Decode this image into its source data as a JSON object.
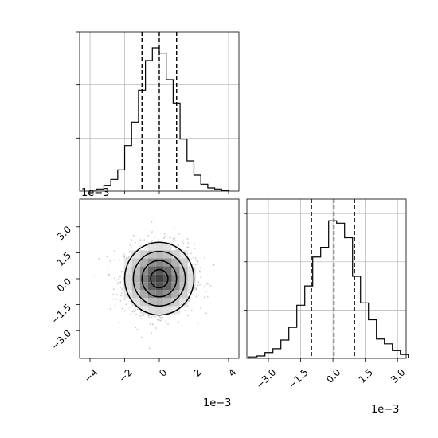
{
  "chart_data": {
    "type": "corner",
    "colors": {
      "line": "#000000",
      "grid": "#b0b0b0",
      "scatter": "#bdbdbd"
    },
    "top_histogram": {
      "type": "histogram",
      "variable": "x",
      "xlim": [
        -4.6,
        4.6
      ],
      "bin_edges": [
        -4.0,
        -3.6,
        -3.2,
        -2.8,
        -2.4,
        -2.0,
        -1.6,
        -1.2,
        -0.8,
        -0.4,
        0.0,
        0.4,
        0.8,
        1.2,
        1.6,
        2.0,
        2.4,
        2.8,
        3.2,
        3.6,
        4.0
      ],
      "counts": [
        2,
        4,
        11,
        22,
        40,
        86,
        130,
        190,
        246,
        270,
        260,
        210,
        166,
        98,
        57,
        30,
        13,
        6,
        4,
        1
      ],
      "ymax": 300,
      "quantiles": [
        -1.0,
        0.0,
        1.0
      ],
      "x_offset_text": "1e−3"
    },
    "scatter_panel": {
      "type": "scatter",
      "xlim": [
        -4.6,
        4.6
      ],
      "ylim": [
        -4.6,
        4.6
      ],
      "x_ticks": [
        -4,
        -2,
        0,
        2,
        4
      ],
      "x_tick_labels": [
        "−4",
        "−2",
        "0",
        "2",
        "4"
      ],
      "y_ticks": [
        -3.0,
        -1.5,
        0.0,
        1.5,
        3.0
      ],
      "y_tick_labels": [
        "−3.0",
        "−1.5",
        "0.0",
        "1.5",
        "3.0"
      ],
      "x_offset_text": "1e−3",
      "y_offset_text": "1e−3",
      "center": [
        0.0,
        0.0
      ],
      "sigma": [
        1.0,
        1.0
      ],
      "contour_levels_sigma": [
        0.5,
        1.0,
        1.5,
        2.0
      ]
    },
    "right_histogram": {
      "type": "histogram",
      "variable": "y",
      "xlim": [
        -4.0,
        3.4
      ],
      "bin_edges": [
        -3.9,
        -3.53,
        -3.16,
        -2.79,
        -2.42,
        -2.05,
        -1.68,
        -1.31,
        -0.94,
        -0.57,
        -0.2,
        0.17,
        0.54,
        0.91,
        1.28,
        1.65,
        2.02,
        2.39,
        2.76,
        3.13,
        3.5
      ],
      "counts": [
        3,
        5,
        12,
        20,
        38,
        64,
        110,
        150,
        210,
        230,
        285,
        280,
        250,
        170,
        115,
        80,
        40,
        30,
        16,
        8
      ],
      "ymax": 330,
      "quantiles": [
        -1.0,
        0.05,
        1.0
      ],
      "x_ticks": [
        -3.0,
        -1.5,
        0.0,
        1.5,
        3.0
      ],
      "x_tick_labels": [
        "−3.0",
        "−1.5",
        "0.0",
        "1.5",
        "3.0"
      ],
      "x_offset_text": "1e−3"
    }
  }
}
